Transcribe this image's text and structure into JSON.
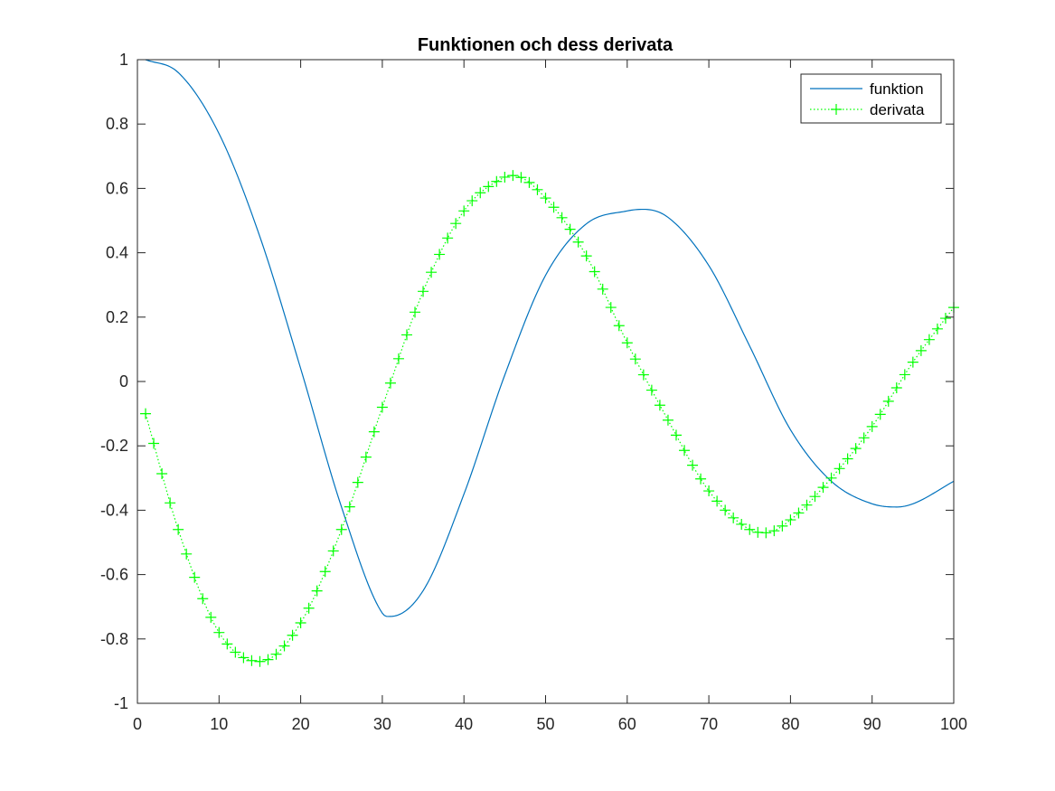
{
  "chart_data": {
    "type": "line",
    "title": "Funktionen och dess derivata",
    "xlim": [
      0,
      100
    ],
    "ylim": [
      -1,
      1
    ],
    "xticks": [
      0,
      10,
      20,
      30,
      40,
      50,
      60,
      70,
      80,
      90,
      100
    ],
    "xtick_labels": [
      "0",
      "10",
      "20",
      "30",
      "40",
      "50",
      "60",
      "70",
      "80",
      "90",
      "100"
    ],
    "yticks": [
      -1,
      -0.8,
      -0.6,
      -0.4,
      -0.2,
      0,
      0.2,
      0.4,
      0.6,
      0.8,
      1
    ],
    "ytick_labels": [
      "-1",
      "-0.8",
      "-0.6",
      "-0.4",
      "-0.2",
      "0",
      "0.2",
      "0.4",
      "0.6",
      "0.8",
      "1"
    ],
    "grid": false,
    "legend_position": "top-right",
    "series": [
      {
        "name": "funktion",
        "color": "#0072bd",
        "style": "solid",
        "marker": "none",
        "x": [
          1,
          5,
          10,
          15,
          20,
          25,
          30,
          31,
          35,
          40,
          45,
          50,
          55,
          60,
          62,
          65,
          70,
          75,
          80,
          85,
          90,
          93,
          95,
          100
        ],
        "y": [
          1.0,
          0.96,
          0.77,
          0.45,
          0.04,
          -0.39,
          -0.72,
          -0.73,
          -0.65,
          -0.35,
          0.02,
          0.33,
          0.49,
          0.53,
          0.535,
          0.51,
          0.36,
          0.11,
          -0.15,
          -0.31,
          -0.38,
          -0.39,
          -0.38,
          -0.31
        ]
      },
      {
        "name": "derivata",
        "color": "#00ff00",
        "style": "dotted",
        "marker": "plus",
        "x": [
          1,
          5,
          10,
          15,
          20,
          25,
          30,
          35,
          40,
          45,
          46,
          50,
          55,
          60,
          65,
          70,
          75,
          77,
          80,
          85,
          90,
          95,
          100
        ],
        "y": [
          -0.1,
          -0.46,
          -0.78,
          -0.87,
          -0.75,
          -0.46,
          -0.08,
          0.28,
          0.53,
          0.635,
          0.64,
          0.57,
          0.39,
          0.12,
          -0.12,
          -0.34,
          -0.46,
          -0.47,
          -0.43,
          -0.3,
          -0.14,
          0.06,
          0.23
        ]
      }
    ]
  }
}
